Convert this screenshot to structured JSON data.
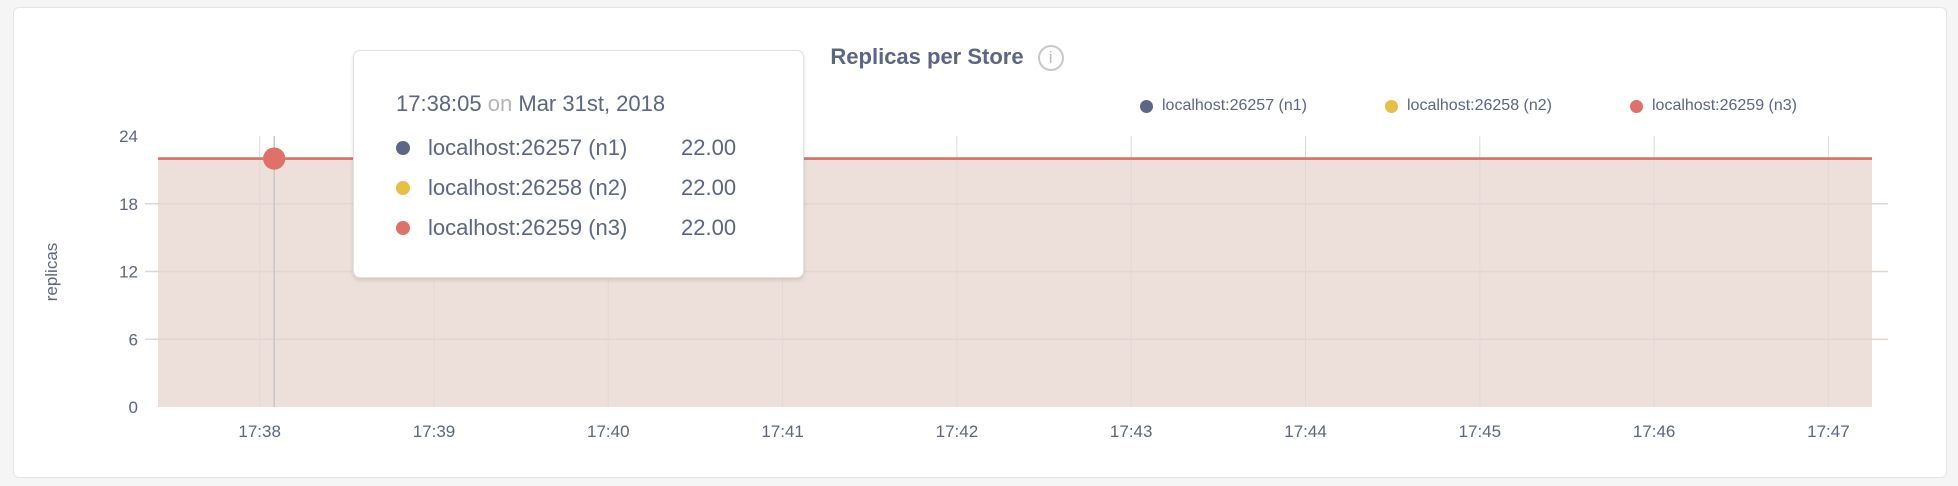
{
  "chart_data": {
    "type": "area",
    "title": "Replicas per Store",
    "info_icon": "info-icon",
    "ylabel": "replicas",
    "xlabel": "",
    "ylim": [
      0,
      24
    ],
    "yticks": [
      "0",
      "6",
      "12",
      "18",
      "24"
    ],
    "xlim": [
      "17:37:25",
      "17:47:15"
    ],
    "xticks": [
      "17:38",
      "17:39",
      "17:40",
      "17:41",
      "17:42",
      "17:43",
      "17:44",
      "17:45",
      "17:46",
      "17:47"
    ],
    "grid": true,
    "legend_position": "top-right",
    "series": [
      {
        "name": "localhost:26257 (n1)",
        "color": "#5d6785",
        "x": [
          "17:37:25",
          "17:47:15"
        ],
        "values": [
          22,
          22
        ]
      },
      {
        "name": "localhost:26258 (n2)",
        "color": "#e8bf45",
        "x": [
          "17:37:25",
          "17:47:15"
        ],
        "values": [
          22,
          22
        ]
      },
      {
        "name": "localhost:26259 (n3)",
        "color": "#e0706a",
        "x": [
          "17:37:25",
          "17:47:15"
        ],
        "values": [
          22,
          22
        ]
      }
    ],
    "fill_color": "#eddfd9"
  },
  "tooltip": {
    "time": "17:38:05",
    "on": "on",
    "date": "Mar 31st, 2018",
    "rows": [
      {
        "label": "localhost:26257 (n1)",
        "value": "22.00",
        "color": "#5d6785"
      },
      {
        "label": "localhost:26258 (n2)",
        "value": "22.00",
        "color": "#e8bf45"
      },
      {
        "label": "localhost:26259 (n3)",
        "value": "22.00",
        "color": "#e0706a"
      }
    ]
  }
}
